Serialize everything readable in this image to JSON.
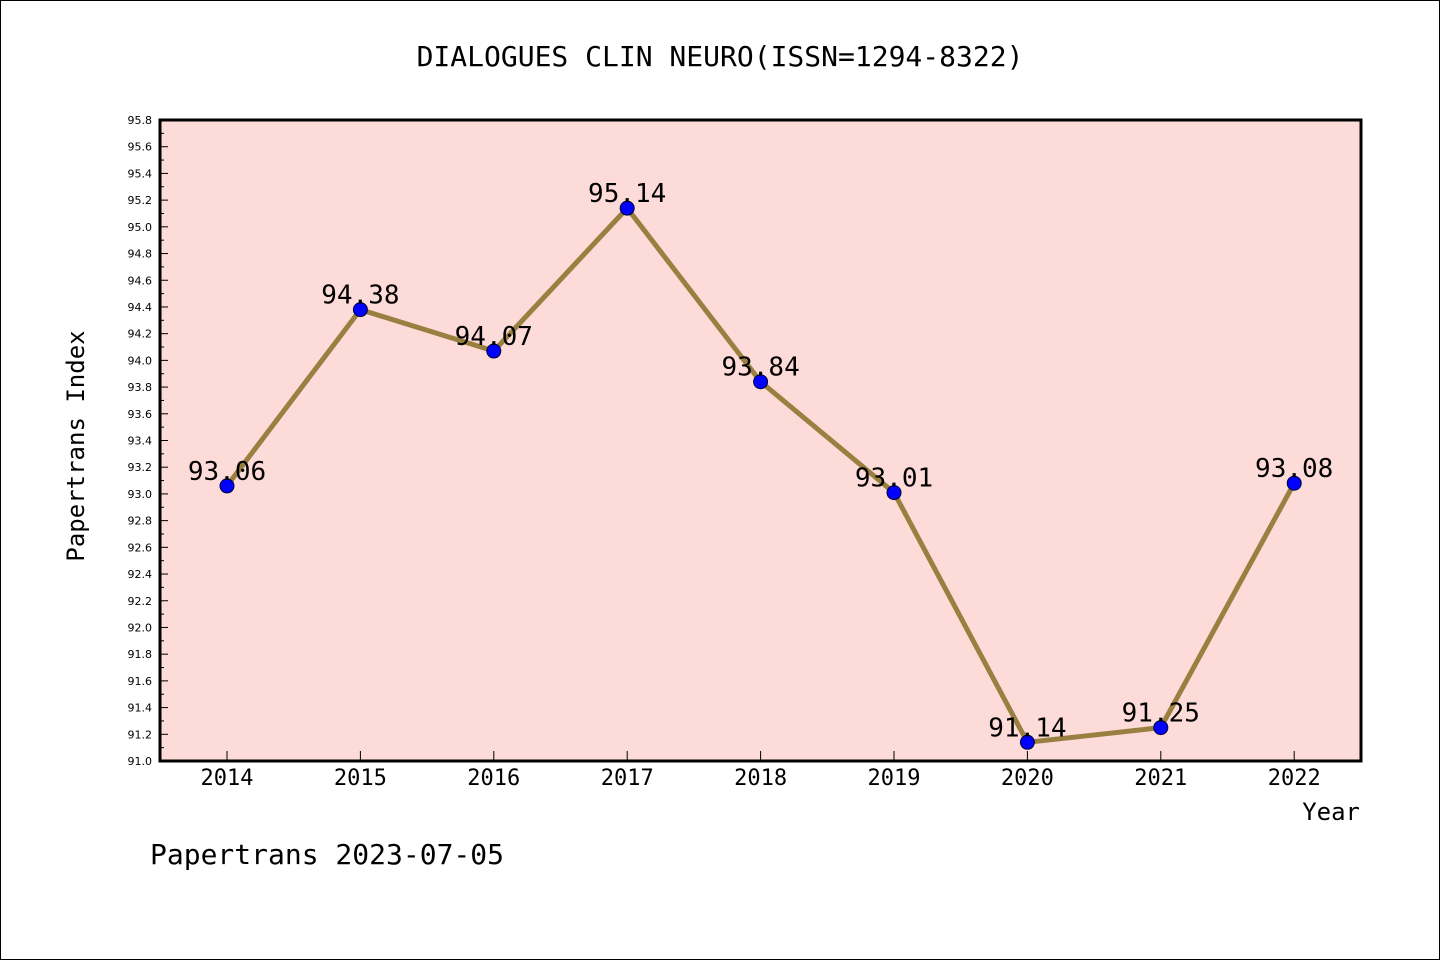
{
  "chart_data": {
    "type": "line",
    "title": "DIALOGUES CLIN NEURO(ISSN=1294-8322)",
    "xlabel": "Year",
    "ylabel": "Papertrans Index",
    "categories": [
      "2014",
      "2015",
      "2016",
      "2017",
      "2018",
      "2019",
      "2020",
      "2021",
      "2022"
    ],
    "series": [
      {
        "values": [
          93.06,
          94.38,
          94.07,
          95.14,
          93.84,
          93.01,
          91.14,
          91.25,
          93.08
        ]
      }
    ],
    "data_labels": [
      "93.06",
      "94.38",
      "94.07",
      "95.14",
      "93.84",
      "93.01",
      "91.14",
      "91.25",
      "93.08"
    ],
    "ylim": [
      91.0,
      95.8
    ],
    "yticks": [
      "91.0",
      "91.2",
      "91.4",
      "91.6",
      "91.8",
      "92.0",
      "92.2",
      "92.4",
      "92.6",
      "92.8",
      "93.0",
      "93.2",
      "93.4",
      "93.6",
      "93.8",
      "94.0",
      "94.2",
      "94.4",
      "94.6",
      "94.8",
      "95.0",
      "95.2",
      "95.4",
      "95.6",
      "95.8"
    ],
    "grid": false,
    "legend": "none",
    "colors": {
      "plot_background": "#fddbd9",
      "line": "#9a8040",
      "marker": "#0000ff"
    }
  },
  "footer": {
    "text": "Papertrans 2023-07-05"
  }
}
